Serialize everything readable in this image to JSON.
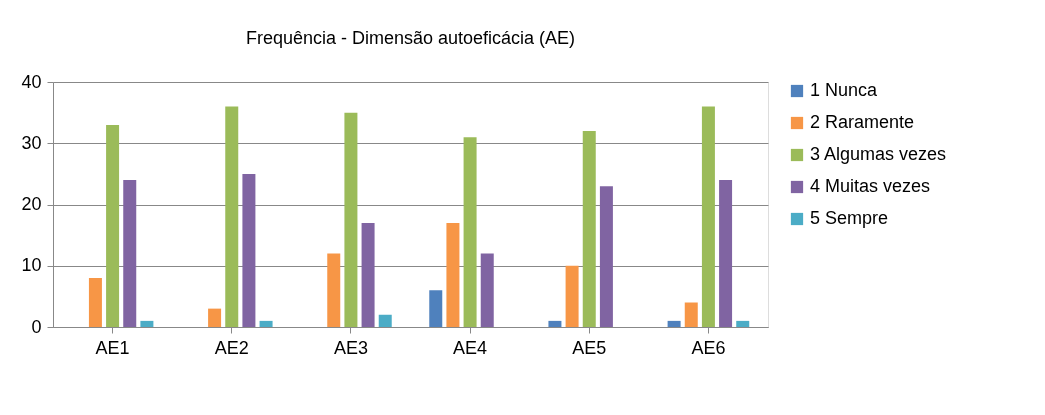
{
  "chart_data": {
    "type": "bar",
    "title": "Frequência - Dimensão autoeficácia (AE)",
    "categories": [
      "AE1",
      "AE2",
      "AE3",
      "AE4",
      "AE5",
      "AE6"
    ],
    "series": [
      {
        "name": "1 Nunca",
        "color": "#4f81bd",
        "values": [
          0,
          0,
          0,
          6,
          1,
          1
        ]
      },
      {
        "name": "2 Raramente",
        "color": "#f79646",
        "values": [
          8,
          3,
          12,
          17,
          10,
          4
        ]
      },
      {
        "name": "3 Algumas vezes",
        "color": "#9bbb59",
        "values": [
          33,
          36,
          35,
          31,
          32,
          36
        ]
      },
      {
        "name": "4 Muitas vezes",
        "color": "#8064a2",
        "values": [
          24,
          25,
          17,
          12,
          23,
          24
        ]
      },
      {
        "name": "5 Sempre",
        "color": "#4bacc6",
        "values": [
          1,
          1,
          2,
          0,
          0,
          1
        ]
      }
    ],
    "ylim": [
      0,
      40
    ],
    "yticks": [
      0,
      10,
      20,
      30,
      40
    ],
    "grid": "y",
    "legend": "right"
  }
}
